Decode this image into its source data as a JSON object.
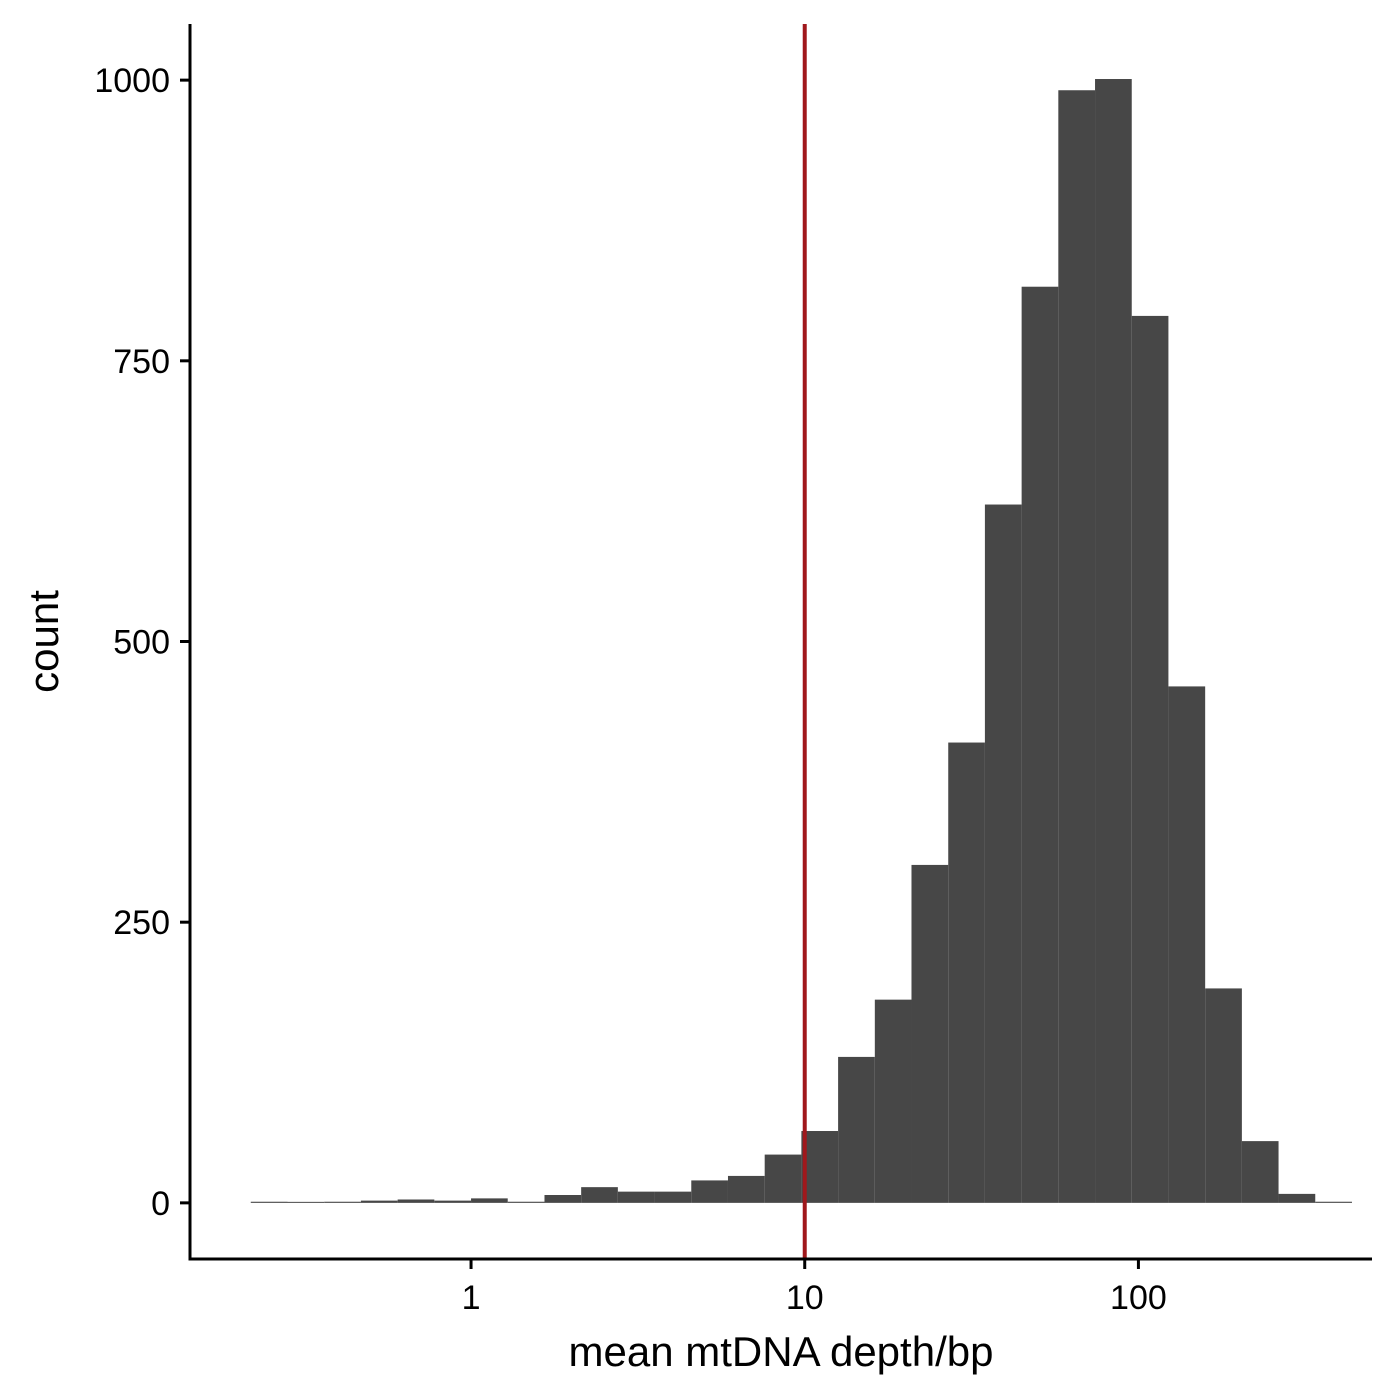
{
  "chart_data": {
    "type": "bar",
    "subtype": "histogram",
    "xscale": "log10",
    "xlabel": "mean mtDNA depth/bp",
    "ylabel": "count",
    "xticks": [
      1,
      10,
      100
    ],
    "xtick_labels": [
      "1",
      "10",
      "100"
    ],
    "yticks": [
      0,
      250,
      500,
      750,
      1000
    ],
    "ytick_labels": [
      "0",
      "250",
      "500",
      "750",
      "1000"
    ],
    "xlim": [
      0.1438,
      501.2
    ],
    "ylim": [
      -50,
      1050
    ],
    "bins": [
      {
        "x0": 0.2187,
        "x1": 0.2818,
        "count": 1
      },
      {
        "x0": 0.2818,
        "x1": 0.3631,
        "count": 0
      },
      {
        "x0": 0.3631,
        "x1": 0.4677,
        "count": 1
      },
      {
        "x0": 0.4677,
        "x1": 0.6026,
        "count": 2
      },
      {
        "x0": 0.6026,
        "x1": 0.7762,
        "count": 3
      },
      {
        "x0": 0.7762,
        "x1": 1.0,
        "count": 2
      },
      {
        "x0": 1.0,
        "x1": 1.288,
        "count": 4
      },
      {
        "x0": 1.288,
        "x1": 1.66,
        "count": 1
      },
      {
        "x0": 1.66,
        "x1": 2.138,
        "count": 7
      },
      {
        "x0": 2.138,
        "x1": 2.754,
        "count": 14
      },
      {
        "x0": 2.754,
        "x1": 3.548,
        "count": 10
      },
      {
        "x0": 3.548,
        "x1": 4.571,
        "count": 10
      },
      {
        "x0": 4.571,
        "x1": 5.888,
        "count": 20
      },
      {
        "x0": 5.888,
        "x1": 7.586,
        "count": 24
      },
      {
        "x0": 7.586,
        "x1": 9.772,
        "count": 43
      },
      {
        "x0": 9.772,
        "x1": 12.59,
        "count": 64
      },
      {
        "x0": 12.59,
        "x1": 16.22,
        "count": 130
      },
      {
        "x0": 16.22,
        "x1": 20.89,
        "count": 181
      },
      {
        "x0": 20.89,
        "x1": 26.92,
        "count": 301
      },
      {
        "x0": 26.92,
        "x1": 34.67,
        "count": 410
      },
      {
        "x0": 34.67,
        "x1": 44.67,
        "count": 622
      },
      {
        "x0": 44.67,
        "x1": 57.54,
        "count": 816
      },
      {
        "x0": 57.54,
        "x1": 74.13,
        "count": 991
      },
      {
        "x0": 74.13,
        "x1": 95.5,
        "count": 1001
      },
      {
        "x0": 95.5,
        "x1": 123.0,
        "count": 790
      },
      {
        "x0": 123.0,
        "x1": 158.5,
        "count": 460
      },
      {
        "x0": 158.5,
        "x1": 204.2,
        "count": 191
      },
      {
        "x0": 204.2,
        "x1": 263.0,
        "count": 55
      },
      {
        "x0": 263.0,
        "x1": 338.8,
        "count": 8
      },
      {
        "x0": 338.8,
        "x1": 436.5,
        "count": 1
      }
    ],
    "bar_color": "#474747",
    "vline": {
      "x": 10,
      "color": "#a0181c"
    },
    "axis_color": "#000000",
    "grid": false,
    "legend": "none"
  }
}
